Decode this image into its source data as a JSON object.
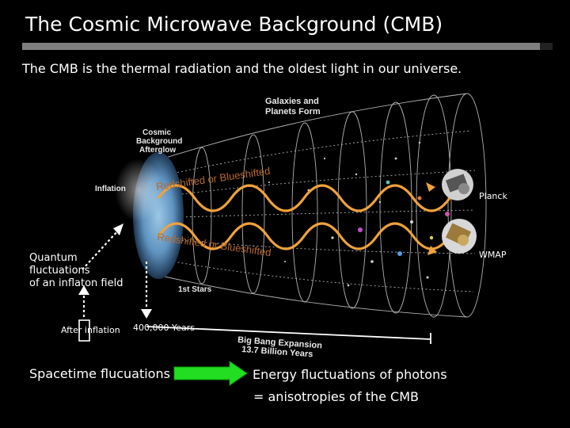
{
  "slide": {
    "title": "The Cosmic Microwave Background (CMB)",
    "subtitle": "The CMB is the thermal radiation and the oldest light in our universe."
  },
  "figure": {
    "labels": {
      "galaxies": [
        "Galaxies and",
        "Planets Form"
      ],
      "afterglow": [
        "Cosmic",
        "Background",
        "Afterglow"
      ],
      "inflation": "Inflation",
      "first_stars": "1st Stars",
      "expansion": [
        "Big Bang Expansion",
        "13.7 Billion Years"
      ],
      "redshift_top": "Redshifted or Blueshifted",
      "redshift_bottom": "Redshifted or Blueshifted"
    },
    "colors": {
      "wave": "#f0a23a",
      "redshift_text": "#b86a2c",
      "grid": "#cfcfcf",
      "afterglow": "#6aa0c8",
      "arrow_fill": "#22dd22"
    }
  },
  "annotations": {
    "planck": "Planck",
    "wmap": "WMAP",
    "quantum": [
      "Quantum",
      "fluctuations",
      "of an inflaton field"
    ],
    "after_inflation": "After inflation",
    "years": "400,000 Years"
  },
  "bottom": {
    "spacetime": "Spacetime flucuations",
    "energy": "Energy fluctuations of photons",
    "anisotropies": "= anisotropies of the CMB"
  }
}
